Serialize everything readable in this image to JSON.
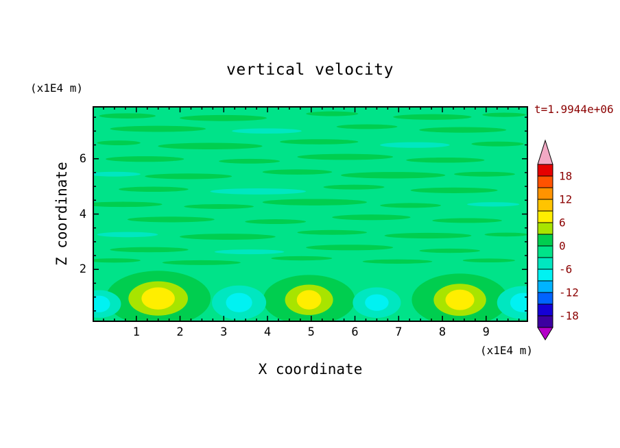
{
  "chart_data": {
    "type": "filled_contour",
    "title": "vertical velocity",
    "xlabel": "X coordinate",
    "ylabel": "Z coordinate",
    "x_units_label": "(x1E4 m)",
    "y_units_label": "(x1E4 m)",
    "time_label": "t=1.9944e+06",
    "annotation_color": "#8b0000",
    "x_range": [
      0,
      9.96
    ],
    "z_range": [
      0.1,
      7.9
    ],
    "x_ticks": [
      1,
      2,
      3,
      4,
      5,
      6,
      7,
      8,
      9
    ],
    "z_ticks": [
      2,
      4,
      6
    ],
    "x_minor_step": 0.25,
    "z_minor_step": 0.5,
    "contour_interval": 3,
    "grid": "off",
    "colorbar": {
      "position": "right",
      "labels": [
        18,
        12,
        6,
        0,
        -6,
        -12,
        -18
      ],
      "levels_top_to_bottom": [
        21,
        18,
        15,
        12,
        9,
        6,
        3,
        0,
        -3,
        -6,
        -9,
        -12,
        -15,
        -18,
        -21
      ],
      "band_colors_top_to_bottom": [
        "#e60000",
        "#ff5200",
        "#ff9300",
        "#ffc400",
        "#ffee00",
        "#a8e400",
        "#00ce4f",
        "#00e389",
        "#00e7c0",
        "#00f2f2",
        "#00b4ff",
        "#0064ff",
        "#1500d6",
        "#3c00a0"
      ],
      "over_color": "#f2a9c4",
      "under_color": "#b400c8",
      "label_color": "#8b0000"
    },
    "field": {
      "description": "Vertical velocity field: near-zero streaky layers above z=2, convective cells below z=2 with updraft cores (~+7) and downdraft cores (~-7).",
      "background_value_band": [
        -3,
        0
      ],
      "background_color": "#00e389",
      "streak_colors": [
        "#00ce4f",
        "#00e7c0"
      ],
      "streaks": [
        [
          0.08,
          0.045,
          0.065,
          0.012,
          0
        ],
        [
          0.3,
          0.055,
          0.1,
          0.014,
          0
        ],
        [
          0.55,
          0.035,
          0.06,
          0.011,
          0
        ],
        [
          0.78,
          0.05,
          0.09,
          0.013,
          0
        ],
        [
          0.945,
          0.04,
          0.05,
          0.01,
          0
        ],
        [
          0.15,
          0.105,
          0.11,
          0.014,
          0
        ],
        [
          0.4,
          0.115,
          0.08,
          0.012,
          1
        ],
        [
          0.63,
          0.095,
          0.07,
          0.011,
          0
        ],
        [
          0.85,
          0.11,
          0.1,
          0.013,
          0
        ],
        [
          0.06,
          0.17,
          0.05,
          0.011,
          0
        ],
        [
          0.27,
          0.185,
          0.12,
          0.015,
          0
        ],
        [
          0.52,
          0.165,
          0.09,
          0.012,
          0
        ],
        [
          0.74,
          0.18,
          0.08,
          0.013,
          1
        ],
        [
          0.93,
          0.175,
          0.06,
          0.011,
          0
        ],
        [
          0.12,
          0.245,
          0.09,
          0.013,
          0
        ],
        [
          0.36,
          0.255,
          0.07,
          0.011,
          0
        ],
        [
          0.58,
          0.235,
          0.11,
          0.014,
          0
        ],
        [
          0.81,
          0.25,
          0.09,
          0.012,
          0
        ],
        [
          0.05,
          0.315,
          0.06,
          0.011,
          1
        ],
        [
          0.22,
          0.325,
          0.1,
          0.013,
          0
        ],
        [
          0.47,
          0.305,
          0.08,
          0.012,
          0
        ],
        [
          0.69,
          0.32,
          0.12,
          0.015,
          0
        ],
        [
          0.9,
          0.315,
          0.07,
          0.011,
          0
        ],
        [
          0.14,
          0.385,
          0.08,
          0.012,
          0
        ],
        [
          0.38,
          0.395,
          0.11,
          0.014,
          1
        ],
        [
          0.6,
          0.375,
          0.07,
          0.011,
          0
        ],
        [
          0.83,
          0.39,
          0.1,
          0.013,
          0
        ],
        [
          0.07,
          0.455,
          0.09,
          0.012,
          0
        ],
        [
          0.29,
          0.465,
          0.08,
          0.011,
          0
        ],
        [
          0.51,
          0.445,
          0.12,
          0.015,
          0
        ],
        [
          0.73,
          0.46,
          0.07,
          0.011,
          0
        ],
        [
          0.92,
          0.455,
          0.06,
          0.01,
          1
        ],
        [
          0.18,
          0.525,
          0.1,
          0.013,
          0
        ],
        [
          0.42,
          0.535,
          0.07,
          0.011,
          0
        ],
        [
          0.64,
          0.515,
          0.09,
          0.013,
          0
        ],
        [
          0.86,
          0.53,
          0.08,
          0.011,
          0
        ],
        [
          0.08,
          0.595,
          0.07,
          0.012,
          1
        ],
        [
          0.31,
          0.605,
          0.11,
          0.014,
          0
        ],
        [
          0.55,
          0.585,
          0.08,
          0.011,
          0
        ],
        [
          0.77,
          0.6,
          0.1,
          0.013,
          0
        ],
        [
          0.95,
          0.595,
          0.05,
          0.009,
          0
        ],
        [
          0.13,
          0.665,
          0.09,
          0.012,
          0
        ],
        [
          0.36,
          0.675,
          0.08,
          0.011,
          1
        ],
        [
          0.59,
          0.655,
          0.1,
          0.013,
          0
        ],
        [
          0.82,
          0.67,
          0.07,
          0.01,
          0
        ],
        [
          0.05,
          0.715,
          0.06,
          0.01,
          0
        ],
        [
          0.25,
          0.725,
          0.09,
          0.011,
          0
        ],
        [
          0.48,
          0.705,
          0.07,
          0.01,
          0
        ],
        [
          0.7,
          0.72,
          0.08,
          0.01,
          0
        ],
        [
          0.91,
          0.715,
          0.06,
          0.009,
          0
        ]
      ],
      "cells": {
        "updrafts": [
          {
            "x": 1.5,
            "z": 0.95,
            "peak": 8,
            "rings": [
              [
                1.2,
                1.0,
                "#00ce4f"
              ],
              [
                0.68,
                0.62,
                "#a8e400"
              ],
              [
                0.38,
                0.4,
                "#ffee00"
              ]
            ]
          },
          {
            "x": 4.95,
            "z": 0.9,
            "peak": 7,
            "rings": [
              [
                1.05,
                0.9,
                "#00ce4f"
              ],
              [
                0.55,
                0.55,
                "#a8e400"
              ],
              [
                0.28,
                0.35,
                "#ffee00"
              ]
            ]
          },
          {
            "x": 8.4,
            "z": 0.9,
            "peak": 7,
            "rings": [
              [
                1.1,
                0.95,
                "#00ce4f"
              ],
              [
                0.6,
                0.58,
                "#a8e400"
              ],
              [
                0.33,
                0.37,
                "#ffee00"
              ]
            ]
          }
        ],
        "downdrafts": [
          {
            "x": 0.15,
            "z": 0.75,
            "peak": -7,
            "rings": [
              [
                0.5,
                0.5,
                "#00e7c0"
              ],
              [
                0.25,
                0.3,
                "#00f2f2"
              ]
            ]
          },
          {
            "x": 3.35,
            "z": 0.8,
            "peak": -7,
            "rings": [
              [
                0.62,
                0.62,
                "#00e7c0"
              ],
              [
                0.3,
                0.35,
                "#00f2f2"
              ]
            ]
          },
          {
            "x": 6.5,
            "z": 0.8,
            "peak": -6,
            "rings": [
              [
                0.55,
                0.55,
                "#00e7c0"
              ],
              [
                0.27,
                0.3,
                "#00f2f2"
              ]
            ]
          },
          {
            "x": 9.85,
            "z": 0.8,
            "peak": -7,
            "rings": [
              [
                0.6,
                0.6,
                "#00e7c0"
              ],
              [
                0.3,
                0.35,
                "#00f2f2"
              ]
            ]
          }
        ]
      }
    }
  }
}
